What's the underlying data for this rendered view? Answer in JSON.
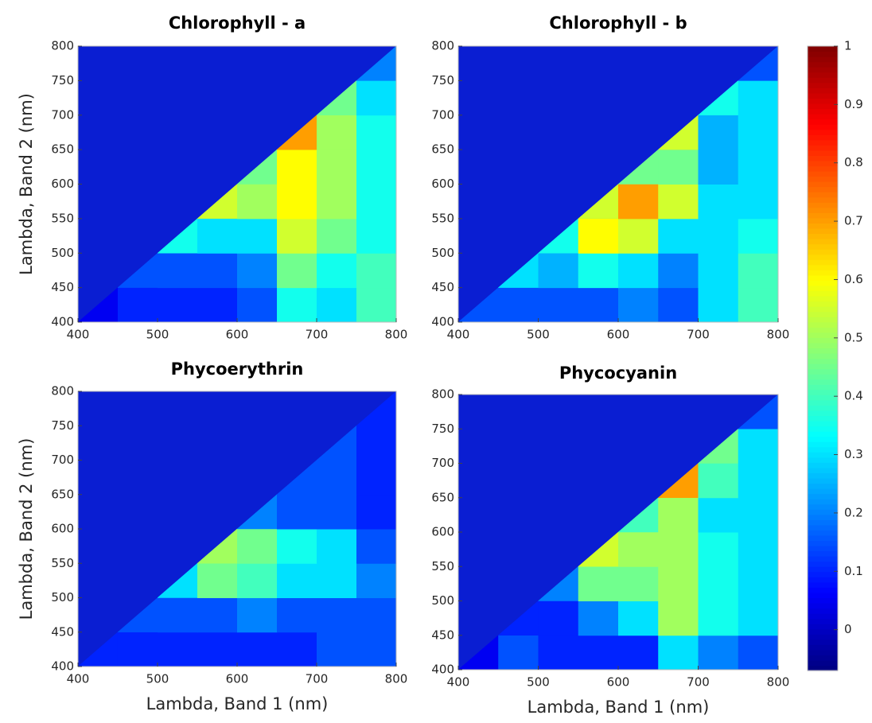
{
  "chart_data": [
    {
      "type": "heatmap",
      "title": "Chlorophyll - a",
      "ylabel": "Lambda, Band 2 (nm)",
      "xlim": [
        400,
        800
      ],
      "xticks": [
        400,
        500,
        600,
        700,
        800
      ],
      "ylim": [
        400,
        800
      ],
      "yticks": [
        400,
        450,
        500,
        550,
        600,
        650,
        700,
        750,
        800
      ],
      "z": [
        [
          0.05,
          0.1,
          0.1,
          0.1,
          0.15,
          0.35,
          0.3,
          0.4
        ],
        [
          null,
          0.15,
          0.15,
          0.15,
          0.2,
          0.45,
          0.35,
          0.4
        ],
        [
          null,
          null,
          0.35,
          0.3,
          0.3,
          0.55,
          0.45,
          0.35
        ],
        [
          null,
          null,
          null,
          0.55,
          0.5,
          0.6,
          0.5,
          0.35
        ],
        [
          null,
          null,
          null,
          null,
          0.45,
          0.6,
          0.5,
          0.35
        ],
        [
          null,
          null,
          null,
          null,
          null,
          0.7,
          0.5,
          0.35
        ],
        [
          null,
          null,
          null,
          null,
          null,
          null,
          0.45,
          0.3
        ],
        [
          null,
          null,
          null,
          null,
          null,
          null,
          null,
          0.2
        ]
      ]
    },
    {
      "type": "heatmap",
      "title": "Chlorophyll - b",
      "xlim": [
        400,
        800
      ],
      "xticks": [
        400,
        500,
        600,
        700,
        800
      ],
      "ylim": [
        400,
        800
      ],
      "yticks": [
        400,
        450,
        500,
        550,
        600,
        650,
        700,
        750,
        800
      ],
      "z": [
        [
          0.15,
          0.15,
          0.15,
          0.15,
          0.2,
          0.15,
          0.3,
          0.4
        ],
        [
          null,
          0.3,
          0.25,
          0.35,
          0.3,
          0.2,
          0.3,
          0.4
        ],
        [
          null,
          null,
          0.35,
          0.6,
          0.55,
          0.3,
          0.3,
          0.35
        ],
        [
          null,
          null,
          null,
          0.55,
          0.7,
          0.55,
          0.3,
          0.3
        ],
        [
          null,
          null,
          null,
          null,
          0.45,
          0.45,
          0.25,
          0.3
        ],
        [
          null,
          null,
          null,
          null,
          null,
          0.55,
          0.25,
          0.3
        ],
        [
          null,
          null,
          null,
          null,
          null,
          null,
          0.35,
          0.3
        ],
        [
          null,
          null,
          null,
          null,
          null,
          null,
          null,
          0.15
        ]
      ]
    },
    {
      "type": "heatmap",
      "title": "Phycoerythrin",
      "xlabel": "Lambda, Band 1 (nm)",
      "ylabel": "Lambda, Band 2 (nm)",
      "xlim": [
        400,
        800
      ],
      "xticks": [
        400,
        500,
        600,
        700,
        800
      ],
      "ylim": [
        400,
        800
      ],
      "yticks": [
        400,
        450,
        500,
        550,
        600,
        650,
        700,
        750,
        800
      ],
      "z": [
        [
          0.1,
          0.1,
          0.1,
          0.1,
          0.1,
          0.1,
          0.15,
          0.15
        ],
        [
          null,
          0.15,
          0.15,
          0.15,
          0.2,
          0.15,
          0.15,
          0.15
        ],
        [
          null,
          null,
          0.3,
          0.45,
          0.4,
          0.3,
          0.3,
          0.2
        ],
        [
          null,
          null,
          null,
          0.5,
          0.45,
          0.35,
          0.3,
          0.15
        ],
        [
          null,
          null,
          null,
          null,
          0.2,
          0.15,
          0.15,
          0.1
        ],
        [
          null,
          null,
          null,
          null,
          null,
          0.15,
          0.15,
          0.1
        ],
        [
          null,
          null,
          null,
          null,
          null,
          null,
          0.15,
          0.1
        ],
        [
          null,
          null,
          null,
          null,
          null,
          null,
          null,
          0.1
        ]
      ]
    },
    {
      "type": "heatmap",
      "title": "Phycocyanin",
      "xlabel": "Lambda, Band 1 (nm)",
      "xlim": [
        400,
        800
      ],
      "xticks": [
        400,
        500,
        600,
        700,
        800
      ],
      "ylim": [
        400,
        800
      ],
      "yticks": [
        400,
        450,
        500,
        550,
        600,
        650,
        700,
        750,
        800
      ],
      "z": [
        [
          0.05,
          0.15,
          0.1,
          0.1,
          0.1,
          0.3,
          0.2,
          0.15
        ],
        [
          null,
          0.1,
          0.1,
          0.2,
          0.3,
          0.5,
          0.35,
          0.3
        ],
        [
          null,
          null,
          0.2,
          0.45,
          0.45,
          0.5,
          0.35,
          0.3
        ],
        [
          null,
          null,
          null,
          0.55,
          0.5,
          0.5,
          0.35,
          0.3
        ],
        [
          null,
          null,
          null,
          null,
          0.4,
          0.5,
          0.3,
          0.3
        ],
        [
          null,
          null,
          null,
          null,
          null,
          0.7,
          0.4,
          0.3
        ],
        [
          null,
          null,
          null,
          null,
          null,
          null,
          0.45,
          0.3
        ],
        [
          null,
          null,
          null,
          null,
          null,
          null,
          null,
          0.15
        ]
      ]
    },
    {
      "type": "colorbar",
      "colormap": "jet",
      "background": "#0a1ed2",
      "ylim": [
        -0.07,
        1
      ],
      "yticks": [
        0,
        0.1,
        0.2,
        0.3,
        0.4,
        0.5,
        0.6,
        0.7,
        0.8,
        0.9,
        1
      ]
    }
  ]
}
